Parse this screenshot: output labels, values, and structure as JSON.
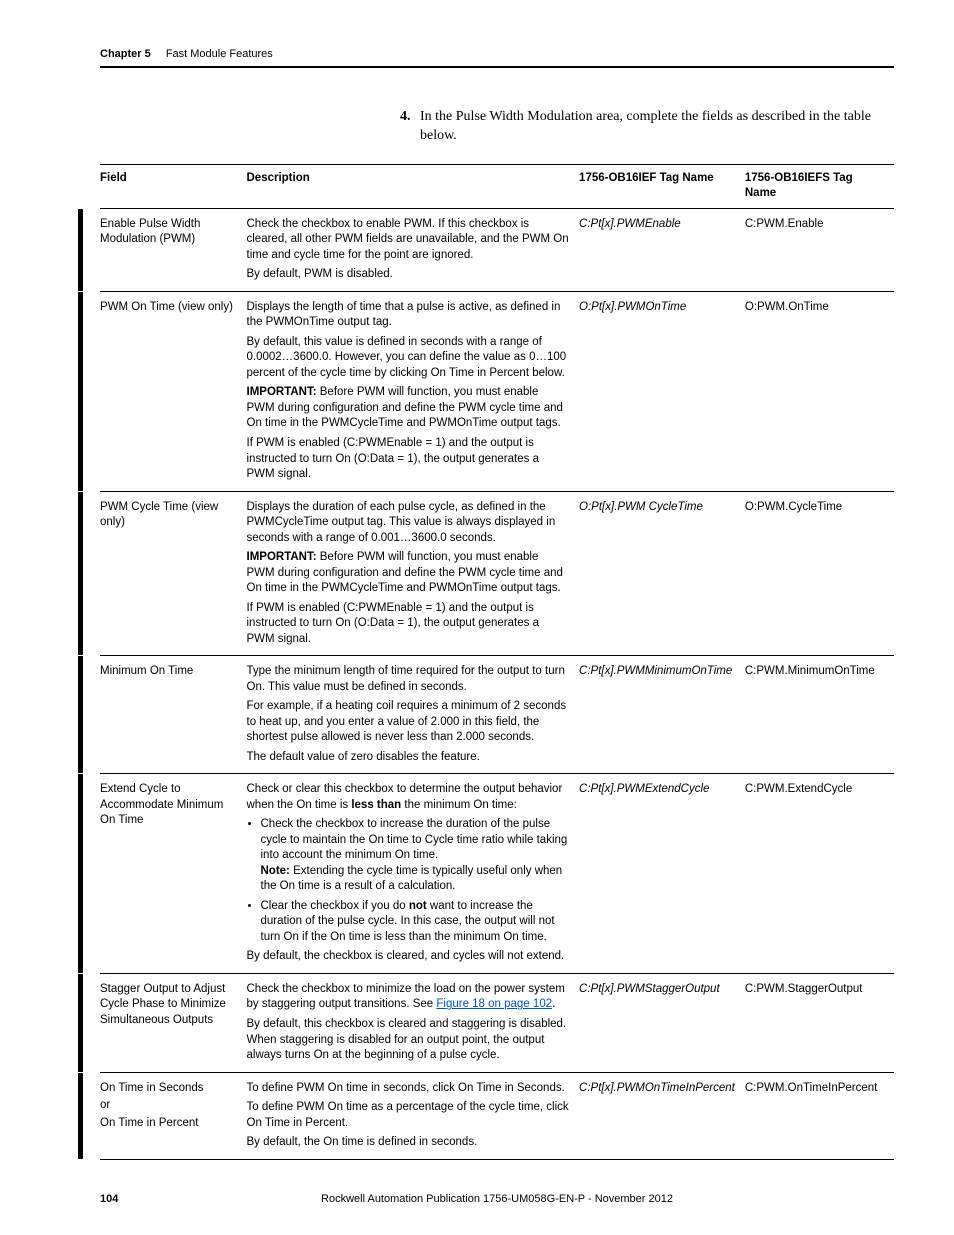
{
  "runningHead": {
    "chapter": "Chapter 5",
    "title": "Fast Module Features"
  },
  "intro": {
    "num": "4.",
    "text": "In the Pulse Width Modulation area, complete the fields as described in the table below."
  },
  "columns": {
    "field": "Field",
    "desc": "Description",
    "tag1": "1756-OB16IEF Tag Name",
    "tag2": "1756-OB16IEFS Tag Name"
  },
  "rows": [
    {
      "field": "Enable Pulse Width Modulation (PWM)",
      "desc": [
        {
          "t": "p",
          "v": "Check the checkbox to enable PWM. If this checkbox is cleared, all other PWM fields are unavailable, and the PWM On time and cycle time for the point are ignored."
        },
        {
          "t": "p",
          "v": "By default, PWM is disabled."
        }
      ],
      "tag1": "C:Pt[x].PWMEnable",
      "tag2": "C:PWM.Enable"
    },
    {
      "field": "PWM On Time (view only)",
      "desc": [
        {
          "t": "p",
          "v": "Displays the length of time that a pulse is active, as defined in the PWMOnTime output tag."
        },
        {
          "t": "p",
          "v": "By default, this value is defined in seconds with a range of 0.0002…3600.0. However, you can define the value as 0…100 percent of the cycle time by clicking On Time in Percent below."
        },
        {
          "t": "p",
          "html": "<span class=\"bold\">IMPORTANT:</span> Before PWM will function, you must enable PWM during configuration and define the PWM cycle time and On time in the PWMCycleTime and PWMOnTime output tags."
        },
        {
          "t": "p",
          "v": "If PWM is enabled (C:PWMEnable = 1) and the output is instructed to turn On (O:Data = 1), the output generates a PWM signal."
        }
      ],
      "tag1": "O:Pt[x].PWMOnTime",
      "tag2": "O:PWM.OnTime"
    },
    {
      "field": "PWM Cycle Time (view only)",
      "desc": [
        {
          "t": "p",
          "v": "Displays the duration of each pulse cycle, as defined in the PWMCycleTime output tag. This value is always displayed in seconds with a range of 0.001…3600.0 seconds."
        },
        {
          "t": "p",
          "html": "<span class=\"bold\">IMPORTANT:</span> Before PWM will function, you must enable PWM during configuration and define the PWM cycle time and On time in the PWMCycleTime and PWMOnTime output tags."
        },
        {
          "t": "p",
          "v": "If PWM is enabled (C:PWMEnable = 1) and the output is instructed to turn On (O:Data = 1), the output generates a PWM signal."
        }
      ],
      "tag1": "O:Pt[x].PWM CycleTime",
      "tag2": "O:PWM.CycleTime"
    },
    {
      "field": "Minimum On Time",
      "desc": [
        {
          "t": "p",
          "v": "Type the minimum length of time required for the output to turn On. This value must be defined in seconds."
        },
        {
          "t": "p",
          "v": "For example, if a heating coil requires a minimum of 2 seconds to heat up, and you enter a value of 2.000 in this field, the shortest pulse allowed is never less than 2.000 seconds."
        },
        {
          "t": "p",
          "v": "The default value of zero disables the feature."
        }
      ],
      "tag1": "C:Pt[x].PWMMinimumOnTime",
      "tag2": "C:PWM.MinimumOnTime"
    },
    {
      "field": "Extend Cycle to Accommodate Minimum On Time",
      "desc": [
        {
          "t": "p",
          "html": "Check or clear this checkbox to determine the output behavior when the On time is <span class=\"bold\">less than</span> the minimum On time:"
        },
        {
          "t": "ul",
          "items": [
            {
              "html": "Check the checkbox to increase the duration of the pulse cycle to maintain the On time to Cycle time ratio while taking into account the minimum On time.<br><span class=\"bold\">Note:</span> Extending the cycle time is typically useful only when the On time is a result of a calculation."
            },
            {
              "html": "Clear the checkbox if you do <span class=\"bold\">not</span> want to increase the duration of the pulse cycle. In this case, the output will not turn On if the On time is less than the minimum On time."
            }
          ]
        },
        {
          "t": "p",
          "v": "By default, the checkbox is cleared, and cycles will not extend."
        }
      ],
      "tag1": "C:Pt[x].PWMExtendCycle",
      "tag2": "C:PWM.ExtendCycle"
    },
    {
      "field": "Stagger Output to Adjust Cycle Phase to Minimize Simultaneous Outputs",
      "desc": [
        {
          "t": "p",
          "html": "Check the checkbox to minimize the load on the power system by staggering output transitions. See <a class=\"link\" href=\"#\">Figure 18 on page 102</a>."
        },
        {
          "t": "p",
          "v": "By default, this checkbox is cleared and staggering is disabled. When staggering is disabled for an output point, the output always turns On at the beginning of a pulse cycle."
        }
      ],
      "tag1": "C:Pt[x].PWMStaggerOutput",
      "tag2": "C:PWM.StaggerOutput"
    },
    {
      "fieldHtml": "On Time in Seconds<div class=\"or-spacer\">or</div>On Time in Percent",
      "desc": [
        {
          "t": "p",
          "v": "To define PWM On time in seconds, click On Time in Seconds."
        },
        {
          "t": "p",
          "v": "To define PWM On time as a percentage of the cycle time, click On Time in Percent."
        },
        {
          "t": "p",
          "v": "By default, the On time is defined in seconds."
        }
      ],
      "tag1": "C:Pt[x].PWMOnTimeInPercent",
      "tag2": "C:PWM.OnTimeInPercent"
    }
  ],
  "footer": {
    "page": "104",
    "pub": "Rockwell Automation Publication 1756-UM058G-EN-P - November 2012"
  }
}
